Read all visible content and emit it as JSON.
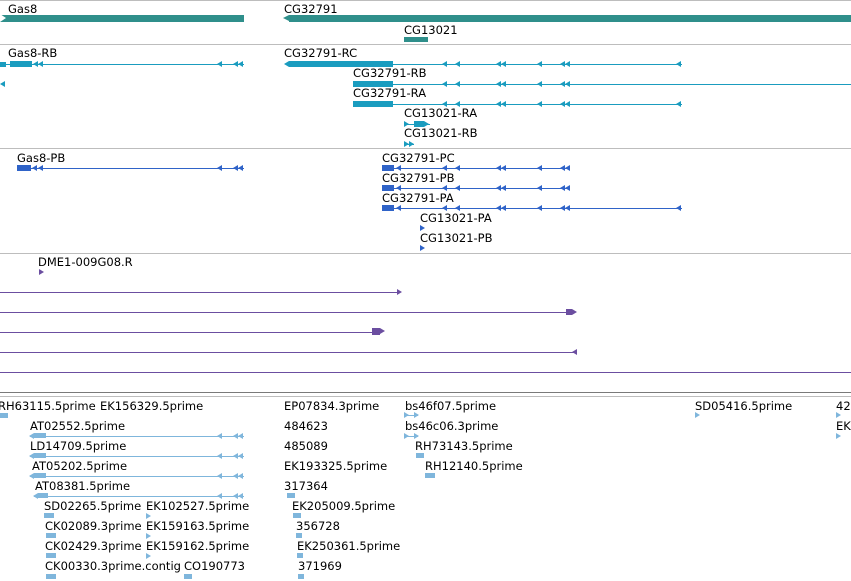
{
  "colors": {
    "gene": "#2f8f8b",
    "rna": "#1a9cbf",
    "protein": "#2f63c8",
    "clone": "#6b4ea0",
    "est": "#7fb6dc",
    "separator": "#bdbdbd"
  },
  "tracks": {
    "genes": [
      {
        "label": "Gas8"
      },
      {
        "label": "CG32791"
      },
      {
        "label": "CG13021"
      }
    ],
    "transcripts": [
      {
        "label": "Gas8-RB"
      },
      {
        "label": "CG32791-RC"
      },
      {
        "label": "CG32791-RB"
      },
      {
        "label": "CG32791-RA"
      },
      {
        "label": "CG13021-RA"
      },
      {
        "label": "CG13021-RB"
      }
    ],
    "proteins": [
      {
        "label": "Gas8-PB"
      },
      {
        "label": "CG32791-PC"
      },
      {
        "label": "CG32791-PB"
      },
      {
        "label": "CG32791-PA"
      },
      {
        "label": "CG13021-PA"
      },
      {
        "label": "CG13021-PB"
      }
    ],
    "clones": [
      {
        "label": "DME1-009G08.R"
      }
    ],
    "ests": [
      {
        "label": "RH63115.5prime"
      },
      {
        "label": "EK156329.5prime"
      },
      {
        "label": "EP07834.3prime"
      },
      {
        "label": "bs46f07.5prime"
      },
      {
        "label": "SD05416.5prime"
      },
      {
        "label": "42"
      },
      {
        "label": "AT02552.5prime"
      },
      {
        "label": "484623"
      },
      {
        "label": "bs46c06.3prime"
      },
      {
        "label": "EK"
      },
      {
        "label": "LD14709.5prime"
      },
      {
        "label": "485089"
      },
      {
        "label": "RH73143.5prime"
      },
      {
        "label": "AT05202.5prime"
      },
      {
        "label": "EK193325.5prime"
      },
      {
        "label": "RH12140.5prime"
      },
      {
        "label": "AT08381.5prime"
      },
      {
        "label": "317364"
      },
      {
        "label": "SD02265.5prime"
      },
      {
        "label": "EK102527.5prime"
      },
      {
        "label": "EK205009.5prime"
      },
      {
        "label": "CK02089.3prime"
      },
      {
        "label": "EK159163.5prime"
      },
      {
        "label": "356728"
      },
      {
        "label": "CK02429.3prime"
      },
      {
        "label": "EK159162.5prime"
      },
      {
        "label": "EK250361.5prime"
      },
      {
        "label": "CK00330.3prime.contig"
      },
      {
        "label": "CO190773"
      },
      {
        "label": "371969"
      }
    ]
  }
}
